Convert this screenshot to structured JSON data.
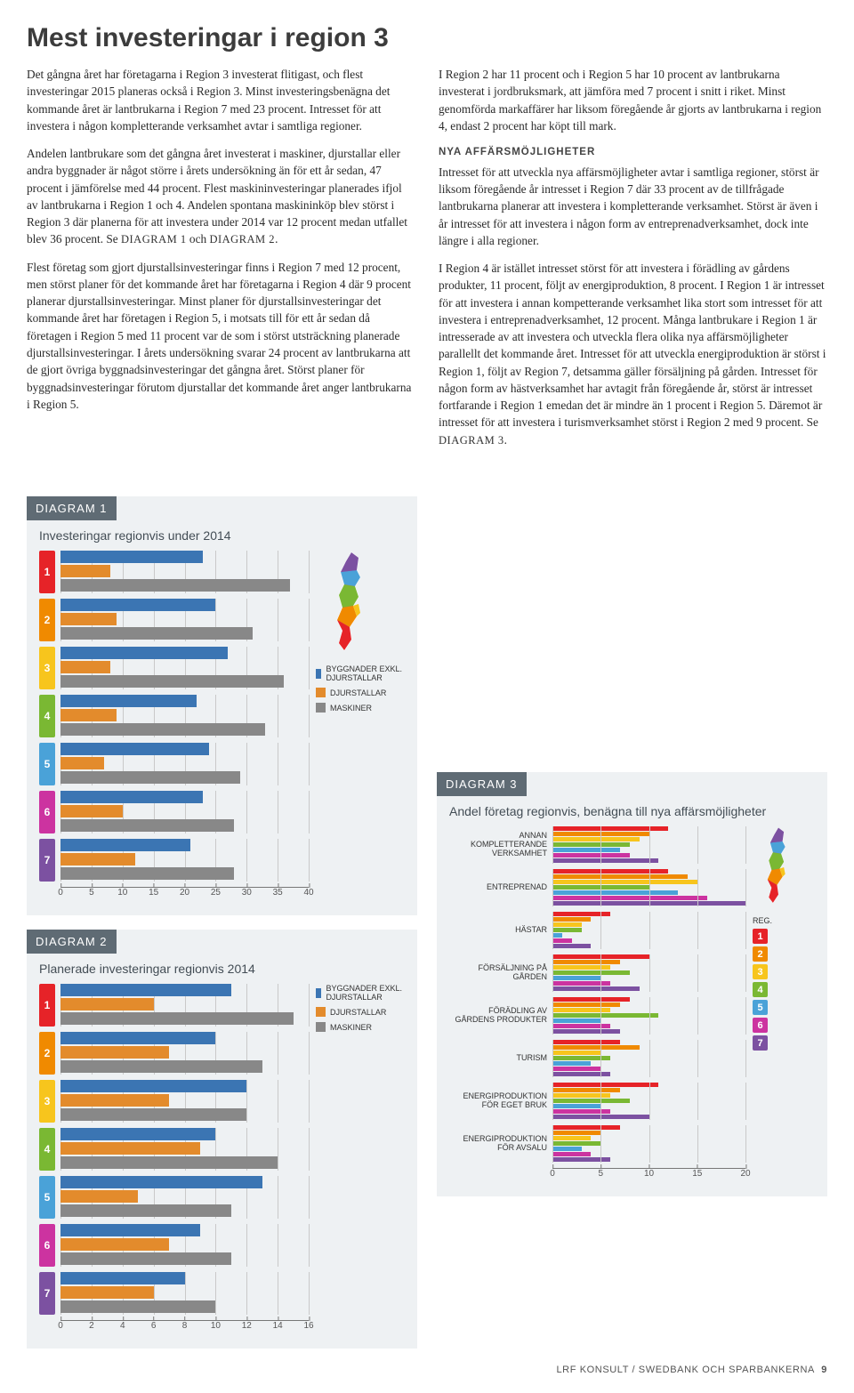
{
  "title": "Mest investeringar i region 3",
  "paragraphs_left": [
    "Det gångna året har företagarna i Region 3 investerat flitigast, och flest investeringar 2015 planeras också i Region 3. Minst investeringsbenägna det kommande året är lantbrukarna i Region 7 med 23 procent. Intresset för att investera i någon kompletterande verksamhet avtar i samtliga regioner.",
    "Andelen lantbrukare som det gångna året investerat i maskiner, djurstallar eller andra byggnader är något större i årets undersökning än för ett år sedan, 47 procent i jämförelse med 44 procent. Flest maskininvesteringar planerades ifjol av lantbrukarna i Region 1 och 4. Andelen spontana maskininköp blev störst i Region 3 där planerna för att investera under 2014 var 12 procent medan utfallet blev 36 procent. Se DIAGRAM 1 och DIAGRAM 2.",
    "Flest företag som gjort djurstallsinvesteringar finns i Region 7 med 12 procent, men störst planer för det kommande året har företagarna i Region 4 där 9 procent planerar djurstallsinvesteringar. Minst planer för djurstallsinvesteringar det kommande året har företagen i Region 5, i motsats till för ett år sedan då företagen i Region 5 med 11 procent var de som i störst utsträckning planerade djurstallsinvesteringar. I årets undersökning svarar 24 procent av lantbrukarna att de gjort övriga byggnadsinvesteringar det gångna året. Störst planer för byggnadsinvesteringar förutom djurstallar det kommande året anger lantbrukarna i Region 5."
  ],
  "paragraphs_right": [
    "I Region 2 har 11 procent och i Region 5 har 10 procent av lantbrukarna investerat i jordbruksmark, att jämföra med 7 procent i snitt i riket. Minst genomförda markaffärer har liksom föregående år gjorts av lantbrukarna i region 4, endast 2 procent har köpt till mark.",
    "Intresset för att utveckla nya affärsmöjligheter avtar i samtliga regioner, störst är liksom föregående år intresset i Region 7 där 33 procent av de tillfrågade lantbrukarna planerar att investera i kompletterande verksamhet. Störst är även i år intresset för att investera i någon form av entreprenadverksamhet, dock inte längre i alla regioner.",
    "I Region 4 är istället intresset störst för att investera i förädling av gårdens produkter, 11 procent, följt av energiproduktion, 8 procent. I Region 1 är intresset för att investera i annan kompetterande verksamhet lika stort som intresset för att investera i entreprenadverksamhet, 12 procent. Många lantbrukare i Region 1 är intresserade av att investera och utveckla flera olika nya affärsmöjligheter parallellt det kommande året. Intresset för att utveckla energiproduktion är störst i Region 1, följt av Region 7, detsamma gäller försäljning på gården. Intresset för någon form av hästverksamhet har avtagit från föregående år, störst är intresset fortfarande i Region 1 emedan det är mindre än 1 procent i Region 5. Däremot är intresset för att investera i turismverksamhet störst i Region 2 med 9 procent. Se DIAGRAM 3."
  ],
  "subhead_r": "NYA AFFÄRSMÖJLIGHETER",
  "region_colors": [
    "#e62328",
    "#f08a00",
    "#f7c51d",
    "#7ab833",
    "#4aa2d8",
    "#cc33a0",
    "#7c51a1"
  ],
  "series_colors": {
    "byggnader": "#3b75b3",
    "djurstallar": "#e38b2c",
    "maskiner": "#888888"
  },
  "diagram1": {
    "header": "DIAGRAM 1",
    "title": "Investeringar regionvis under 2014",
    "xmax": 40,
    "xtick_step": 5,
    "legend": [
      "BYGGNADER EXKL. DJURSTALLAR",
      "DJURSTALLAR",
      "MASKINER"
    ],
    "regions": [
      {
        "n": "1",
        "byggnader": 23,
        "djurstallar": 8,
        "maskiner": 37
      },
      {
        "n": "2",
        "byggnader": 25,
        "djurstallar": 9,
        "maskiner": 31
      },
      {
        "n": "3",
        "byggnader": 27,
        "djurstallar": 8,
        "maskiner": 36
      },
      {
        "n": "4",
        "byggnader": 22,
        "djurstallar": 9,
        "maskiner": 33
      },
      {
        "n": "5",
        "byggnader": 24,
        "djurstallar": 7,
        "maskiner": 29
      },
      {
        "n": "6",
        "byggnader": 23,
        "djurstallar": 10,
        "maskiner": 28
      },
      {
        "n": "7",
        "byggnader": 21,
        "djurstallar": 12,
        "maskiner": 28
      }
    ]
  },
  "diagram2": {
    "header": "DIAGRAM 2",
    "title": "Planerade investeringar regionvis 2014",
    "xmax": 16,
    "xtick_step": 2,
    "legend": [
      "BYGGNADER EXKL. DJURSTALLAR",
      "DJURSTALLAR",
      "MASKINER"
    ],
    "regions": [
      {
        "n": "1",
        "byggnader": 11,
        "djurstallar": 6,
        "maskiner": 15
      },
      {
        "n": "2",
        "byggnader": 10,
        "djurstallar": 7,
        "maskiner": 13
      },
      {
        "n": "3",
        "byggnader": 12,
        "djurstallar": 7,
        "maskiner": 12
      },
      {
        "n": "4",
        "byggnader": 10,
        "djurstallar": 9,
        "maskiner": 14
      },
      {
        "n": "5",
        "byggnader": 13,
        "djurstallar": 5,
        "maskiner": 11
      },
      {
        "n": "6",
        "byggnader": 9,
        "djurstallar": 7,
        "maskiner": 11
      },
      {
        "n": "7",
        "byggnader": 8,
        "djurstallar": 6,
        "maskiner": 10
      }
    ]
  },
  "diagram3": {
    "header": "DIAGRAM 3",
    "title": "Andel företag regionvis, benägna till nya affärsmöjligheter",
    "xmax": 20,
    "xtick_step": 5,
    "reg_label": "REG.",
    "categories": [
      {
        "label": "ANNAN KOMPLETTERANDE VERKSAMHET",
        "v": [
          12,
          10,
          9,
          8,
          7,
          8,
          11
        ]
      },
      {
        "label": "ENTREPRENAD",
        "v": [
          12,
          14,
          15,
          10,
          13,
          16,
          20
        ]
      },
      {
        "label": "HÄSTAR",
        "v": [
          6,
          4,
          3,
          3,
          1,
          2,
          4
        ]
      },
      {
        "label": "FÖRSÄLJNING PÅ GÅRDEN",
        "v": [
          10,
          7,
          6,
          8,
          5,
          6,
          9
        ]
      },
      {
        "label": "FÖRÄDLING AV GÅRDENS PRODUKTER",
        "v": [
          8,
          7,
          6,
          11,
          5,
          6,
          7
        ]
      },
      {
        "label": "TURISM",
        "v": [
          7,
          9,
          5,
          6,
          4,
          5,
          6
        ]
      },
      {
        "label": "ENERGIPRODUKTION FÖR EGET BRUK",
        "v": [
          11,
          7,
          6,
          8,
          5,
          6,
          10
        ]
      },
      {
        "label": "ENERGIPRODUKTION FÖR AVSALU",
        "v": [
          7,
          5,
          4,
          5,
          3,
          4,
          6
        ]
      }
    ]
  },
  "footer_left": "",
  "footer_right": "LRF KONSULT / SWEDBANK OCH SPARBANKERNA",
  "footer_page": "9"
}
